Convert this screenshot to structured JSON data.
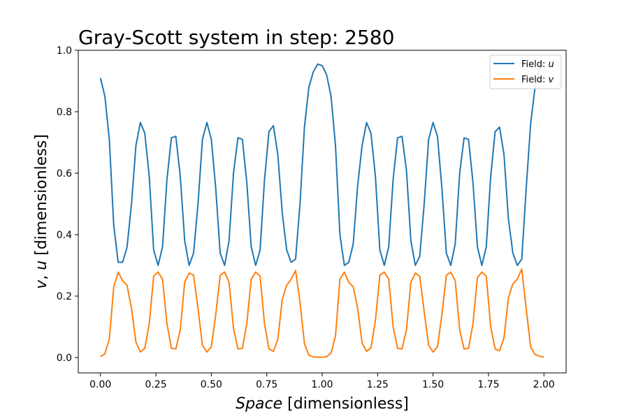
{
  "chart_data": {
    "type": "line",
    "title": "Gray-Scott system in step: 2580",
    "xlabel_italic": "Space",
    "xlabel_rest": " [dimensionless]",
    "ylabel_var1": "v",
    "ylabel_sep": ", ",
    "ylabel_var2": "u",
    "ylabel_rest": " [dimensionless]",
    "xlim": [
      -0.1,
      2.1
    ],
    "ylim": [
      -0.05,
      1.0
    ],
    "xticks": [
      0.0,
      0.25,
      0.5,
      0.75,
      1.0,
      1.25,
      1.5,
      1.75,
      2.0
    ],
    "xtick_labels": [
      "0.00",
      "0.25",
      "0.50",
      "0.75",
      "1.00",
      "1.25",
      "1.50",
      "1.75",
      "2.00"
    ],
    "yticks": [
      0.0,
      0.2,
      0.4,
      0.6,
      0.8,
      1.0
    ],
    "ytick_labels": [
      "0.0",
      "0.2",
      "0.4",
      "0.6",
      "0.8",
      "1.0"
    ],
    "grid": false,
    "legend_position": "top-right",
    "x": [
      0.0,
      0.02,
      0.04,
      0.06,
      0.08,
      0.1,
      0.12,
      0.14,
      0.16,
      0.18,
      0.2,
      0.22,
      0.24,
      0.26,
      0.28,
      0.3,
      0.32,
      0.34,
      0.36,
      0.38,
      0.4,
      0.42,
      0.44,
      0.46,
      0.48,
      0.5,
      0.52,
      0.54,
      0.56,
      0.58,
      0.6,
      0.62,
      0.64,
      0.66,
      0.68,
      0.7,
      0.72,
      0.74,
      0.76,
      0.78,
      0.8,
      0.82,
      0.84,
      0.86,
      0.88,
      0.9,
      0.92,
      0.94,
      0.96,
      0.98,
      1.0,
      1.02,
      1.04,
      1.06,
      1.08,
      1.1,
      1.12,
      1.14,
      1.16,
      1.18,
      1.2,
      1.22,
      1.24,
      1.26,
      1.28,
      1.3,
      1.32,
      1.34,
      1.36,
      1.38,
      1.4,
      1.42,
      1.44,
      1.46,
      1.48,
      1.5,
      1.52,
      1.54,
      1.56,
      1.58,
      1.6,
      1.62,
      1.64,
      1.66,
      1.68,
      1.7,
      1.72,
      1.74,
      1.76,
      1.78,
      1.8,
      1.82,
      1.84,
      1.86,
      1.88,
      1.9,
      1.92,
      1.94,
      1.96,
      1.98,
      2.0
    ],
    "series": [
      {
        "name": "Field: u",
        "legend_prefix": "Field: ",
        "legend_var": "u",
        "color": "#1f77b4",
        "values": [
          0.91,
          0.85,
          0.71,
          0.43,
          0.31,
          0.31,
          0.36,
          0.5,
          0.69,
          0.765,
          0.73,
          0.59,
          0.35,
          0.3,
          0.36,
          0.58,
          0.715,
          0.72,
          0.59,
          0.38,
          0.3,
          0.34,
          0.5,
          0.71,
          0.765,
          0.71,
          0.55,
          0.34,
          0.3,
          0.38,
          0.6,
          0.715,
          0.71,
          0.57,
          0.36,
          0.3,
          0.35,
          0.58,
          0.735,
          0.755,
          0.66,
          0.47,
          0.35,
          0.31,
          0.32,
          0.5,
          0.75,
          0.88,
          0.93,
          0.955,
          0.95,
          0.92,
          0.85,
          0.69,
          0.4,
          0.3,
          0.31,
          0.37,
          0.56,
          0.69,
          0.765,
          0.73,
          0.59,
          0.35,
          0.3,
          0.36,
          0.58,
          0.715,
          0.72,
          0.61,
          0.38,
          0.3,
          0.33,
          0.5,
          0.71,
          0.765,
          0.72,
          0.55,
          0.34,
          0.3,
          0.37,
          0.6,
          0.715,
          0.71,
          0.57,
          0.36,
          0.3,
          0.36,
          0.59,
          0.735,
          0.75,
          0.66,
          0.45,
          0.34,
          0.3,
          0.32,
          0.55,
          0.76,
          0.88,
          0.94,
          0.96
        ]
      },
      {
        "name": "Field: v",
        "legend_prefix": "Field: ",
        "legend_var": "v",
        "color": "#ff7f0e",
        "values": [
          0.003,
          0.012,
          0.06,
          0.23,
          0.278,
          0.25,
          0.235,
          0.16,
          0.05,
          0.018,
          0.03,
          0.11,
          0.265,
          0.278,
          0.255,
          0.11,
          0.03,
          0.028,
          0.09,
          0.245,
          0.275,
          0.268,
          0.16,
          0.04,
          0.018,
          0.035,
          0.14,
          0.268,
          0.278,
          0.245,
          0.095,
          0.028,
          0.03,
          0.11,
          0.255,
          0.278,
          0.265,
          0.11,
          0.028,
          0.02,
          0.06,
          0.19,
          0.235,
          0.255,
          0.283,
          0.18,
          0.045,
          0.008,
          0.002,
          0.001,
          0.001,
          0.003,
          0.015,
          0.07,
          0.255,
          0.278,
          0.245,
          0.23,
          0.16,
          0.048,
          0.02,
          0.032,
          0.12,
          0.268,
          0.278,
          0.256,
          0.1,
          0.03,
          0.028,
          0.09,
          0.245,
          0.275,
          0.265,
          0.15,
          0.04,
          0.018,
          0.035,
          0.14,
          0.268,
          0.278,
          0.25,
          0.09,
          0.028,
          0.03,
          0.11,
          0.26,
          0.278,
          0.265,
          0.1,
          0.028,
          0.022,
          0.065,
          0.195,
          0.24,
          0.255,
          0.288,
          0.16,
          0.035,
          0.01,
          0.004,
          0.002
        ]
      }
    ]
  }
}
